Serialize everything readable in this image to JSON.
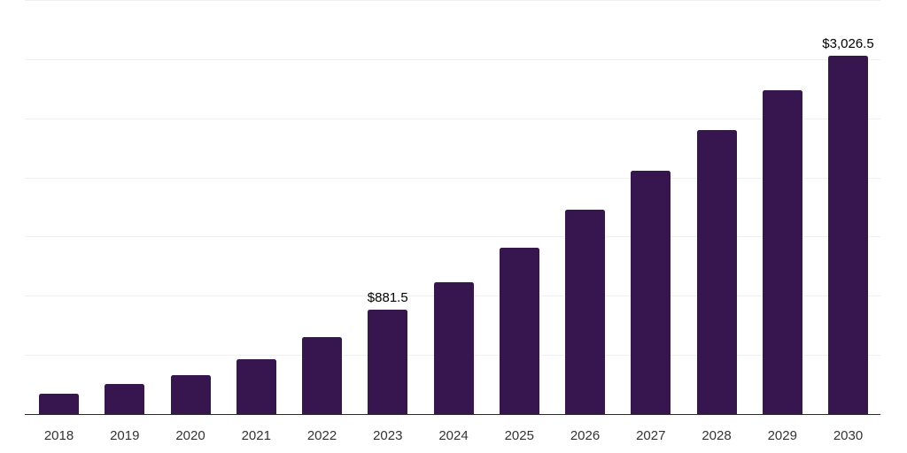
{
  "chart_data": {
    "type": "bar",
    "title": "",
    "categories": [
      "2018",
      "2019",
      "2020",
      "2021",
      "2022",
      "2023",
      "2024",
      "2025",
      "2026",
      "2027",
      "2028",
      "2029",
      "2030"
    ],
    "values": [
      170,
      255,
      330,
      465,
      650,
      881.5,
      1115,
      1405,
      1725,
      2060,
      2400,
      2735,
      3026.5
    ],
    "annotations": [
      {
        "category": "2023",
        "text": "$881.5"
      },
      {
        "category": "2030",
        "text": "$3,026.5"
      }
    ],
    "xlabel": "",
    "ylabel": "",
    "ylim": [
      0,
      3500
    ],
    "gridline_step": 500,
    "grid": "horizontal-only",
    "legend_position": "none",
    "y_axis_tick_labels_visible": false,
    "colors": {
      "bar": "#37154e",
      "gridline": "#f0f0f0",
      "axis_line": "#2b2b2b",
      "tick_label": "#333333",
      "data_label": "#000000",
      "background": "#ffffff"
    }
  }
}
